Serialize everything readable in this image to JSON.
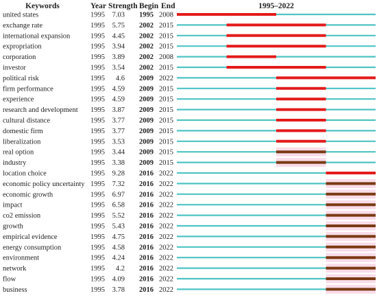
{
  "chart_data": {
    "type": "table",
    "headers": {
      "keywords": "Keywords",
      "year": "Year",
      "strength": "Strength",
      "begin": "Begin",
      "end": "End",
      "timeline": "1995–2022"
    },
    "timeline_start": 1995,
    "timeline_end": 2022,
    "colors": {
      "baseline": "#4ec3c3",
      "burst_red": "#e41b1b",
      "burst_brown": "#7a3a13",
      "highlight_pink": "#f9dce9"
    },
    "rows": [
      {
        "keyword": "united states",
        "year": "1995",
        "strength": "7.03",
        "begin": "1995",
        "end": "2008",
        "burst_color": "red"
      },
      {
        "keyword": "exchange rate",
        "year": "1995",
        "strength": "5.75",
        "begin": "2002",
        "end": "2015",
        "burst_color": "red"
      },
      {
        "keyword": "international expansion",
        "year": "1995",
        "strength": "4.45",
        "begin": "2002",
        "end": "2015",
        "burst_color": "red"
      },
      {
        "keyword": "expropriation",
        "year": "1995",
        "strength": "3.94",
        "begin": "2002",
        "end": "2015",
        "burst_color": "red"
      },
      {
        "keyword": "corporation",
        "year": "1995",
        "strength": "3.89",
        "begin": "2002",
        "end": "2008",
        "burst_color": "red"
      },
      {
        "keyword": "investor",
        "year": "1995",
        "strength": "3.54",
        "begin": "2002",
        "end": "2015",
        "burst_color": "red"
      },
      {
        "keyword": "political risk",
        "year": "1995",
        "strength": "4.6",
        "begin": "2009",
        "end": "2022",
        "burst_color": "red"
      },
      {
        "keyword": "firm performance",
        "year": "1995",
        "strength": "4.59",
        "begin": "2009",
        "end": "2015",
        "burst_color": "red"
      },
      {
        "keyword": "experience",
        "year": "1995",
        "strength": "4.59",
        "begin": "2009",
        "end": "2015",
        "burst_color": "red"
      },
      {
        "keyword": "research and development",
        "year": "1995",
        "strength": "3.87",
        "begin": "2009",
        "end": "2015",
        "burst_color": "red"
      },
      {
        "keyword": "cultural distance",
        "year": "1995",
        "strength": "3.77",
        "begin": "2009",
        "end": "2015",
        "burst_color": "red"
      },
      {
        "keyword": "domestic firm",
        "year": "1995",
        "strength": "3.77",
        "begin": "2009",
        "end": "2015",
        "burst_color": "red"
      },
      {
        "keyword": "liberalization",
        "year": "1995",
        "strength": "3.53",
        "begin": "2009",
        "end": "2015",
        "burst_color": "red"
      },
      {
        "keyword": "real option",
        "year": "1995",
        "strength": "3.44",
        "begin": "2009",
        "end": "2015",
        "burst_color": "brown"
      },
      {
        "keyword": "industry",
        "year": "1995",
        "strength": "3.38",
        "begin": "2009",
        "end": "2015",
        "burst_color": "brown"
      },
      {
        "keyword": "location choice",
        "year": "1995",
        "strength": "9.28",
        "begin": "2016",
        "end": "2022",
        "burst_color": "red"
      },
      {
        "keyword": "economic policy uncertainty",
        "year": "1995",
        "strength": "7.32",
        "begin": "2016",
        "end": "2022",
        "burst_color": "brown"
      },
      {
        "keyword": "economic growth",
        "year": "1995",
        "strength": "6.97",
        "begin": "2016",
        "end": "2022",
        "burst_color": "brown"
      },
      {
        "keyword": "impact",
        "year": "1995",
        "strength": "6.58",
        "begin": "2016",
        "end": "2022",
        "burst_color": "brown"
      },
      {
        "keyword": "co2 emission",
        "year": "1995",
        "strength": "5.52",
        "begin": "2016",
        "end": "2022",
        "burst_color": "brown"
      },
      {
        "keyword": "growth",
        "year": "1995",
        "strength": "5.43",
        "begin": "2016",
        "end": "2022",
        "burst_color": "brown"
      },
      {
        "keyword": "empirical evidence",
        "year": "1995",
        "strength": "4.75",
        "begin": "2016",
        "end": "2022",
        "burst_color": "brown"
      },
      {
        "keyword": "energy consumption",
        "year": "1995",
        "strength": "4.58",
        "begin": "2016",
        "end": "2022",
        "burst_color": "brown"
      },
      {
        "keyword": "environment",
        "year": "1995",
        "strength": "4.24",
        "begin": "2016",
        "end": "2022",
        "burst_color": "brown"
      },
      {
        "keyword": "network",
        "year": "1995",
        "strength": "4.2",
        "begin": "2016",
        "end": "2022",
        "burst_color": "brown"
      },
      {
        "keyword": "flow",
        "year": "1995",
        "strength": "4.09",
        "begin": "2016",
        "end": "2022",
        "burst_color": "brown"
      },
      {
        "keyword": "business",
        "year": "1995",
        "strength": "3.78",
        "begin": "2016",
        "end": "2022",
        "burst_color": "brown"
      }
    ]
  }
}
